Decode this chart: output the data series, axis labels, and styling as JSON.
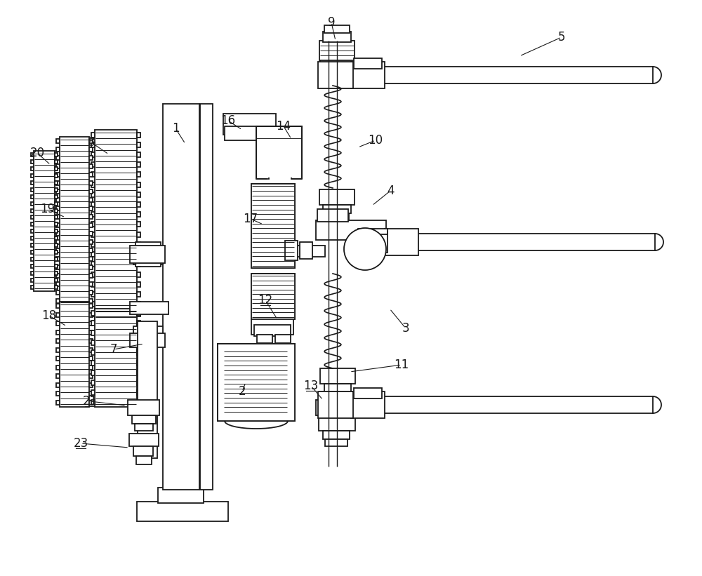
{
  "bg_color": "#ffffff",
  "lc": "#1a1a1a",
  "lw": 1.3,
  "tlw": 0.7,
  "figsize": [
    10.0,
    8.21
  ],
  "dpi": 100
}
